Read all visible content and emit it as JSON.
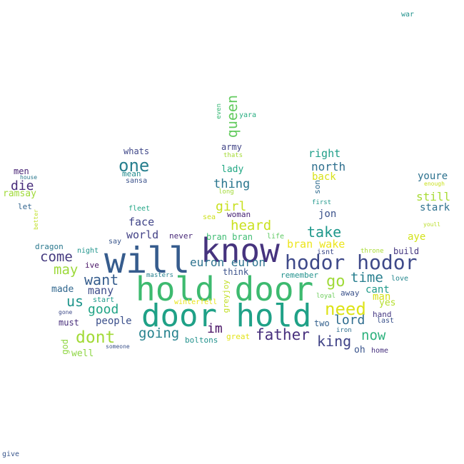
{
  "words": [
    {
      "text": "hold door",
      "color": "#3dba6f"
    },
    {
      "text": "door hold",
      "color": "#1fa187"
    },
    {
      "text": "will",
      "color": "#365c8d"
    },
    {
      "text": "know",
      "color": "#46337e"
    },
    {
      "text": "hodor hodor",
      "color": "#3e4989"
    },
    {
      "text": "one",
      "color": "#277f8e"
    },
    {
      "text": "need",
      "color": "#dde318"
    },
    {
      "text": "dont",
      "color": "#a2da37"
    },
    {
      "text": "father",
      "color": "#472f7d"
    },
    {
      "text": "go",
      "color": "#a0da39"
    },
    {
      "text": "want",
      "color": "#365d8d"
    },
    {
      "text": "take",
      "color": "#1f988b"
    },
    {
      "text": "come",
      "color": "#44397f"
    },
    {
      "text": "going",
      "color": "#26828e"
    },
    {
      "text": "us",
      "color": "#1f958b"
    },
    {
      "text": "king",
      "color": "#404387"
    },
    {
      "text": "now",
      "color": "#2db27d"
    },
    {
      "text": "may",
      "color": "#9dd93b"
    },
    {
      "text": "time",
      "color": "#277e8e"
    },
    {
      "text": "heard",
      "color": "#cae11f"
    },
    {
      "text": "girl",
      "color": "#c8e020"
    },
    {
      "text": "euron euron",
      "color": "#2c728e"
    },
    {
      "text": "good",
      "color": "#20a386"
    },
    {
      "text": "lord",
      "color": "#2f6c8e"
    },
    {
      "text": "im",
      "color": "#471164"
    },
    {
      "text": "queen",
      "color": "#63cb5f"
    },
    {
      "text": "die",
      "color": "#472c7a"
    },
    {
      "text": "thing",
      "color": "#2a768e"
    },
    {
      "text": "bran wake",
      "color": "#ece51b"
    },
    {
      "text": "many",
      "color": "#3e4c8a"
    },
    {
      "text": "north",
      "color": "#2e6f8e"
    },
    {
      "text": "face",
      "color": "#404588"
    },
    {
      "text": "world",
      "color": "#424186"
    },
    {
      "text": "right",
      "color": "#1f9e89"
    },
    {
      "text": "jon",
      "color": "#3b528b"
    },
    {
      "text": "cant",
      "color": "#1f9a8a"
    },
    {
      "text": "man",
      "color": "#d5e21a"
    },
    {
      "text": "still",
      "color": "#a8db34"
    },
    {
      "text": "youre",
      "color": "#2c718e"
    },
    {
      "text": "people",
      "color": "#3c508b"
    },
    {
      "text": "back",
      "color": "#d8e219"
    },
    {
      "text": "made",
      "color": "#31678e"
    },
    {
      "text": "stark",
      "color": "#2d708e"
    },
    {
      "text": "oh",
      "color": "#3a548c"
    },
    {
      "text": "bran bran",
      "color": "#3fbc73"
    },
    {
      "text": "ramsay",
      "color": "#a0da39"
    },
    {
      "text": "aye",
      "color": "#d2e21b"
    },
    {
      "text": "men",
      "color": "#482475"
    },
    {
      "text": "lady",
      "color": "#22a884"
    },
    {
      "text": "whats",
      "color": "#3f4788"
    },
    {
      "text": "army",
      "color": "#414487"
    },
    {
      "text": "must",
      "color": "#472d7b"
    },
    {
      "text": "think",
      "color": "#3b528b"
    },
    {
      "text": "well",
      "color": "#8ed645"
    },
    {
      "text": "yes",
      "color": "#b5de2b"
    },
    {
      "text": "two",
      "color": "#34618d"
    },
    {
      "text": "build",
      "color": "#453781"
    },
    {
      "text": "dragon",
      "color": "#2a788e"
    },
    {
      "text": "never",
      "color": "#482878"
    },
    {
      "text": "woman",
      "color": "#482576"
    },
    {
      "text": "ive",
      "color": "#471365"
    },
    {
      "text": "hand",
      "color": "#453882"
    },
    {
      "text": "greyjoy",
      "color": "#c2df23"
    },
    {
      "text": "remember",
      "color": "#21918c"
    },
    {
      "text": "boltons",
      "color": "#21918c"
    },
    {
      "text": "mean",
      "color": "#228b8d"
    },
    {
      "text": "away",
      "color": "#3b528b"
    },
    {
      "text": "son",
      "color": "#2f6b8e"
    },
    {
      "text": "god",
      "color": "#90d743"
    },
    {
      "text": "let",
      "color": "#32648e"
    },
    {
      "text": "fleet",
      "color": "#21a585"
    },
    {
      "text": "sansa",
      "color": "#3b528b"
    },
    {
      "text": "say",
      "color": "#39568c"
    },
    {
      "text": "life",
      "color": "#5ec962"
    },
    {
      "text": "isnt",
      "color": "#3e4a89"
    },
    {
      "text": "night",
      "color": "#1f948c"
    },
    {
      "text": "start",
      "color": "#1e9b8a"
    },
    {
      "text": "even",
      "color": "#39b977"
    },
    {
      "text": "yara",
      "color": "#27ad81"
    },
    {
      "text": "sea",
      "color": "#cde11d"
    },
    {
      "text": "last",
      "color": "#3b528b"
    },
    {
      "text": "great",
      "color": "#e2e418"
    },
    {
      "text": "home",
      "color": "#46307e"
    },
    {
      "text": "iron",
      "color": "#2e6e8e"
    },
    {
      "text": "love",
      "color": "#24878e"
    },
    {
      "text": "thats",
      "color": "#a5db36"
    },
    {
      "text": "long",
      "color": "#a2da37"
    },
    {
      "text": "first",
      "color": "#1f988b"
    },
    {
      "text": "winterfell",
      "color": "#e7e419"
    },
    {
      "text": "masters",
      "color": "#26818e"
    },
    {
      "text": "loyal",
      "color": "#6ccd5a"
    },
    {
      "text": "throne",
      "color": "#a8db34"
    },
    {
      "text": "youll",
      "color": "#bade28"
    },
    {
      "text": "enough",
      "color": "#cae11f"
    },
    {
      "text": "house",
      "color": "#2a788e"
    },
    {
      "text": "better",
      "color": "#c0df25"
    },
    {
      "text": "gone",
      "color": "#3e4a89"
    },
    {
      "text": "someone",
      "color": "#3b528b"
    },
    {
      "text": "war",
      "color": "#20928c"
    },
    {
      "text": "give",
      "color": "#39568c"
    }
  ]
}
